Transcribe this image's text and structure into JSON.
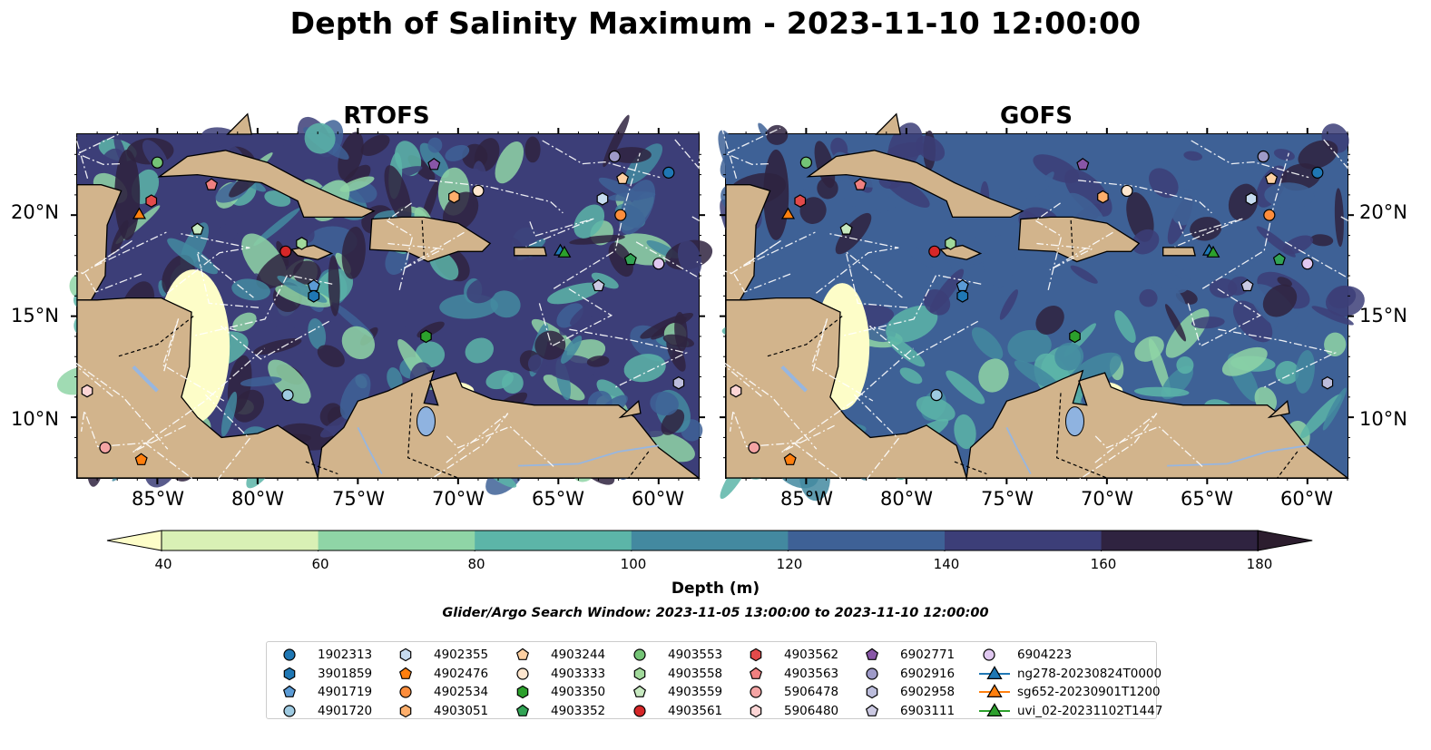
{
  "title": "Depth of Salinity Maximum - 2023-11-10 12:00:00",
  "panels": [
    {
      "title": "RTOFS"
    },
    {
      "title": "GOFS"
    }
  ],
  "axes": {
    "y_ticks": [
      "20°N",
      "15°N",
      "10°N"
    ],
    "x_ticks": [
      "85°W",
      "80°W",
      "75°W",
      "70°W",
      "65°W",
      "60°W"
    ]
  },
  "colorbar": {
    "label": "Depth (m)",
    "ticks": [
      "40",
      "60",
      "80",
      "100",
      "120",
      "140",
      "160",
      "180"
    ],
    "colors": [
      "#d9f0b5",
      "#8fd5a6",
      "#5cb5a8",
      "#4389a0",
      "#3e6196",
      "#3c3e78",
      "#2f2340"
    ],
    "extend_min_color": "#fdfdc8",
    "extend_max_color": "#2c1d2e"
  },
  "search_window": "Glider/Argo Search Window: 2023-11-05 13:00:00 to 2023-11-10 12:00:00",
  "chart_data": {
    "type": "heatmap",
    "title": "Depth of Salinity Maximum - 2023-11-10 12:00:00",
    "panels": [
      "RTOFS",
      "GOFS"
    ],
    "lon_range": [
      -89,
      -58
    ],
    "lat_range": [
      7,
      24
    ],
    "colorbar_range": [
      40,
      180
    ],
    "colorbar_label": "Depth (m)",
    "legend_placement": "bottom",
    "land_color": "#d2b48c",
    "stations": [
      {
        "name": "1902313",
        "marker": "circle",
        "color": "#1f77b4",
        "lon": -59.5,
        "lat": 22.1
      },
      {
        "name": "3901859",
        "marker": "hexagon",
        "color": "#1f77b4",
        "lon": -77.2,
        "lat": 16.0
      },
      {
        "name": "4901719",
        "marker": "pentagon",
        "color": "#5b9bd5",
        "lon": -77.2,
        "lat": 16.5
      },
      {
        "name": "4901720",
        "marker": "circle",
        "color": "#9ecae1",
        "lon": -78.5,
        "lat": 11.1
      },
      {
        "name": "4902355",
        "marker": "hexagon",
        "color": "#c6dbef",
        "lon": -62.8,
        "lat": 20.8
      },
      {
        "name": "4902476",
        "marker": "pentagon",
        "color": "#ff7f0e",
        "lon": -85.8,
        "lat": 7.9
      },
      {
        "name": "4902534",
        "marker": "circle",
        "color": "#fd8d3c",
        "lon": -61.9,
        "lat": 20.0
      },
      {
        "name": "4903051",
        "marker": "hexagon",
        "color": "#fdae6b",
        "lon": -70.2,
        "lat": 20.9
      },
      {
        "name": "4903244",
        "marker": "pentagon",
        "color": "#fdd0a2",
        "lon": -61.8,
        "lat": 21.8
      },
      {
        "name": "4903333",
        "marker": "circle",
        "color": "#fee6ce",
        "lon": -69.0,
        "lat": 21.2
      },
      {
        "name": "4903350",
        "marker": "hexagon",
        "color": "#2ca02c",
        "lon": -71.6,
        "lat": 14.0
      },
      {
        "name": "4903352",
        "marker": "pentagon",
        "color": "#31a354",
        "lon": -61.4,
        "lat": 17.8
      },
      {
        "name": "4903553",
        "marker": "circle",
        "color": "#74c476",
        "lon": -85.0,
        "lat": 22.6
      },
      {
        "name": "4903558",
        "marker": "hexagon",
        "color": "#a1d99b",
        "lon": -77.8,
        "lat": 18.6
      },
      {
        "name": "4903559",
        "marker": "pentagon",
        "color": "#c7e9c0",
        "lon": -83.0,
        "lat": 19.3
      },
      {
        "name": "4903561",
        "marker": "circle",
        "color": "#d62728",
        "lon": -78.6,
        "lat": 18.2
      },
      {
        "name": "4903562",
        "marker": "hexagon",
        "color": "#e34a4a",
        "lon": -85.3,
        "lat": 20.7
      },
      {
        "name": "4903563",
        "marker": "pentagon",
        "color": "#f08080",
        "lon": -82.3,
        "lat": 21.5
      },
      {
        "name": "5906478",
        "marker": "circle",
        "color": "#f4a4a4",
        "lon": -87.6,
        "lat": 8.5
      },
      {
        "name": "5906480",
        "marker": "hexagon",
        "color": "#fcd5d5",
        "lon": -88.5,
        "lat": 11.3
      },
      {
        "name": "6902771",
        "marker": "pentagon",
        "color": "#8856a7",
        "lon": -71.2,
        "lat": 22.5
      },
      {
        "name": "6902916",
        "marker": "circle",
        "color": "#9e9ac8",
        "lon": -62.2,
        "lat": 22.9
      },
      {
        "name": "6902958",
        "marker": "hexagon",
        "color": "#bcbddc",
        "lon": -59.0,
        "lat": 11.7
      },
      {
        "name": "6903111",
        "marker": "pentagon",
        "color": "#cbc9e2",
        "lon": -63.0,
        "lat": 16.5
      },
      {
        "name": "6904223",
        "marker": "circle",
        "color": "#e0c8f0",
        "lon": -60.0,
        "lat": 17.6
      },
      {
        "name": "ng278-20230824T0000",
        "marker": "triangle",
        "color": "#1f77b4",
        "lon": -64.9,
        "lat": 18.2
      },
      {
        "name": "sg652-20230901T1200",
        "marker": "triangle",
        "color": "#ff7f0e",
        "lon": -85.9,
        "lat": 20.0
      },
      {
        "name": "uvi_02-20231102T1447",
        "marker": "triangle",
        "color": "#2ca02c",
        "lon": -64.7,
        "lat": 18.1
      }
    ]
  }
}
